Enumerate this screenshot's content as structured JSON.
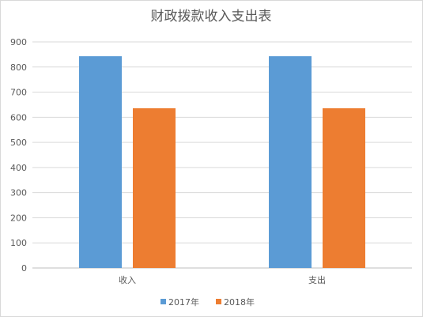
{
  "chart_data": {
    "type": "bar",
    "title": "财政拨款收入支出表",
    "categories": [
      "收入",
      "支出"
    ],
    "series": [
      {
        "name": "2017年",
        "values": [
          843,
          843
        ],
        "color": "#5b9bd5"
      },
      {
        "name": "2018年",
        "values": [
          636,
          636
        ],
        "color": "#ed7d31"
      }
    ],
    "yticks": [
      "0",
      "100",
      "200",
      "300",
      "400",
      "500",
      "600",
      "700",
      "800",
      "900"
    ],
    "ylim": [
      0,
      900
    ],
    "grid": true,
    "legend": "bottom"
  }
}
